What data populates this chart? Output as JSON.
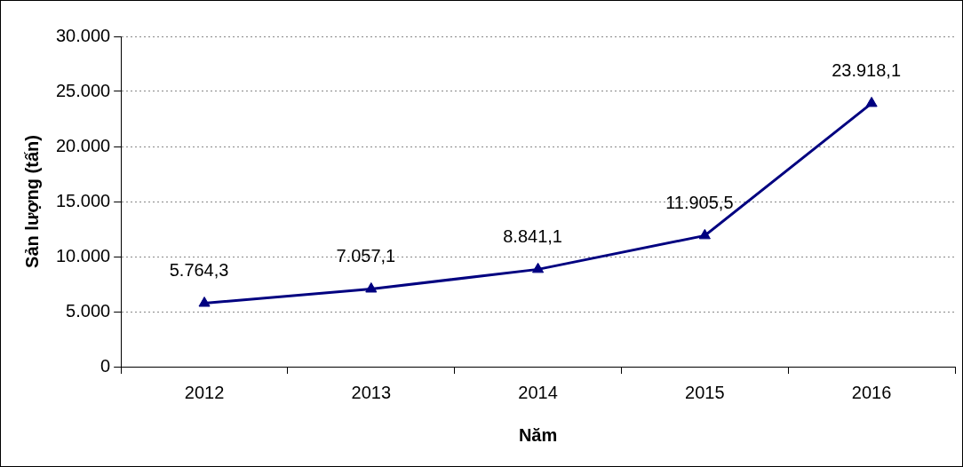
{
  "chart_data": {
    "type": "line",
    "xlabel": "Năm",
    "ylabel": "Sản lượng (tấn)",
    "categories": [
      "2012",
      "2013",
      "2014",
      "2015",
      "2016"
    ],
    "series": [
      {
        "color": "#000080",
        "values": [
          5764.3,
          7057.1,
          8841.1,
          11905.5,
          23918.1
        ],
        "value_labels": [
          "5.764,3",
          "7.057,1",
          "8.841,1",
          "11.905,5",
          "23.918,1"
        ]
      }
    ],
    "ylim": [
      0,
      30000
    ],
    "yticks": [
      {
        "value": 0,
        "label": "0"
      },
      {
        "value": 5000,
        "label": "5.000"
      },
      {
        "value": 10000,
        "label": "10.000"
      },
      {
        "value": 15000,
        "label": "15.000"
      },
      {
        "value": 20000,
        "label": "20.000"
      },
      {
        "value": 25000,
        "label": "25.000"
      },
      {
        "value": 30000,
        "label": "30.000"
      }
    ],
    "grid": "y",
    "marker": "triangle",
    "line_style": "solid"
  }
}
